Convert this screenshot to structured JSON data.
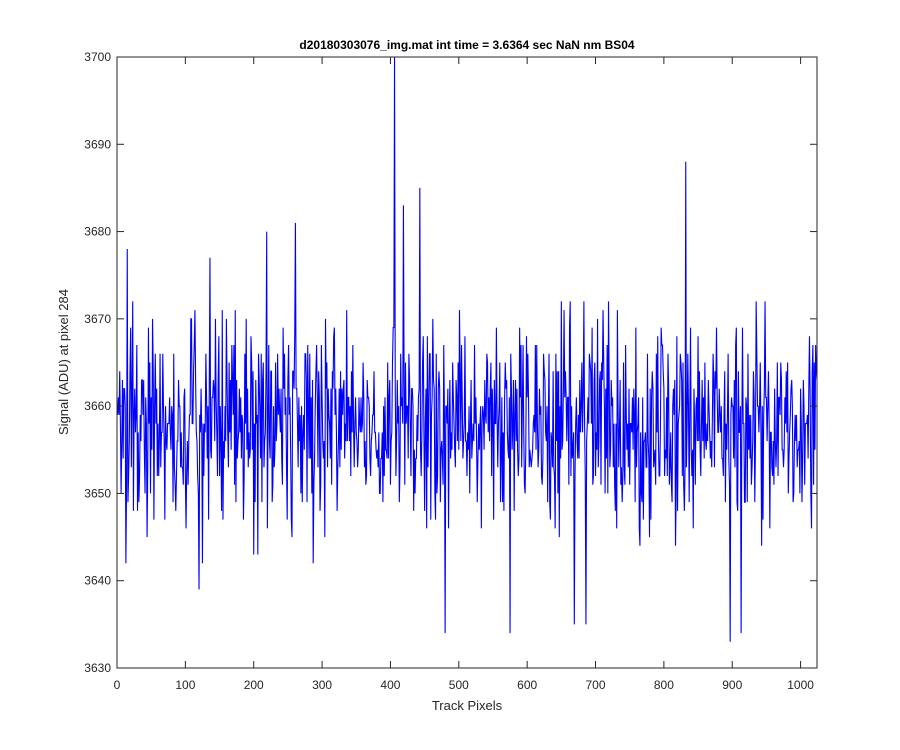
{
  "chart_data": {
    "type": "line",
    "title": "d20180303076_img.mat int time = 3.6364 sec  NaN nm BS04",
    "xlabel": "Track Pixels",
    "ylabel": "Signal (ADU) at pixel 284",
    "xlim": [
      0,
      1024
    ],
    "ylim": [
      3630,
      3700
    ],
    "xticks": [
      0,
      100,
      200,
      300,
      400,
      500,
      600,
      700,
      800,
      900,
      1000
    ],
    "yticks": [
      3630,
      3640,
      3650,
      3660,
      3670,
      3680,
      3690,
      3700
    ],
    "grid": false,
    "box": true,
    "series": [
      {
        "color": "#0000ff",
        "n_points": 1024,
        "x_start": 1,
        "notable_points": [
          {
            "x": 406,
            "y": 3700
          },
          {
            "x": 419,
            "y": 3683
          },
          {
            "x": 443,
            "y": 3685
          },
          {
            "x": 832,
            "y": 3688
          },
          {
            "x": 15,
            "y": 3678
          },
          {
            "x": 219,
            "y": 3680
          },
          {
            "x": 261,
            "y": 3681
          },
          {
            "x": 136,
            "y": 3677
          },
          {
            "x": 480,
            "y": 3634
          },
          {
            "x": 575,
            "y": 3634
          },
          {
            "x": 897,
            "y": 3633
          },
          {
            "x": 913,
            "y": 3634
          },
          {
            "x": 669,
            "y": 3635
          },
          {
            "x": 686,
            "y": 3635
          },
          {
            "x": 120,
            "y": 3639
          }
        ],
        "summary": {
          "baseline": 3658,
          "typical_min": 3642,
          "typical_max": 3672
        }
      }
    ]
  }
}
